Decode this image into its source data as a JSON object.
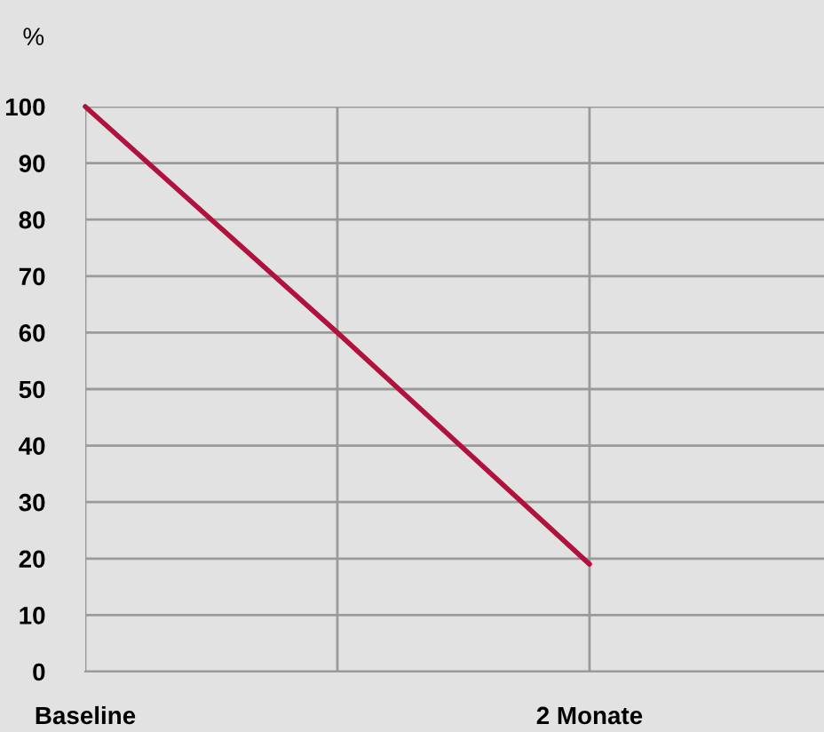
{
  "chart_data": {
    "type": "line",
    "ylabel": "%",
    "categories": [
      "Baseline",
      null,
      "2 Monate"
    ],
    "ylim": [
      0,
      100
    ],
    "yticks": [
      0,
      10,
      20,
      30,
      40,
      50,
      60,
      70,
      80,
      90,
      100
    ],
    "series": [
      {
        "color": "#b0123f",
        "values": [
          100,
          60,
          19
        ]
      }
    ],
    "grid": true,
    "marker": "none",
    "line_style": "solid"
  }
}
